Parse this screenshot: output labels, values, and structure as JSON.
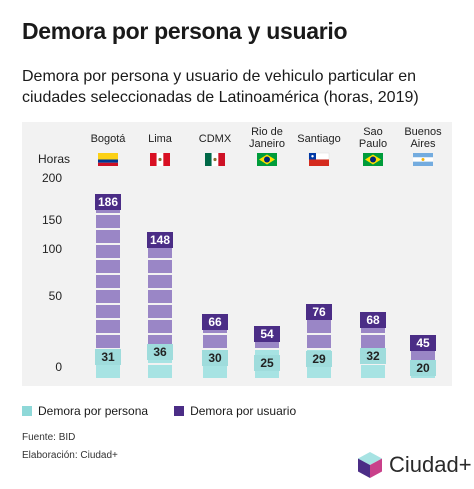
{
  "header": {
    "title": "Demora por persona y usuario"
  },
  "chart_data": {
    "type": "bar",
    "title": "Demora por persona y usuario de vehiculo particular  en ciudades seleccionadas de Latinoamérica (horas, 2019)",
    "ylabel": "Horas",
    "yticks": [
      "200",
      "150",
      "100",
      "50",
      "0"
    ],
    "categories": [
      "Bogotá",
      "Lima",
      "CDMX",
      "Rio de Janeiro",
      "Santiago",
      "Sao Paulo",
      "Buenos Aires"
    ],
    "category_lines": [
      [
        "Bogotá"
      ],
      [
        "Lima"
      ],
      [
        "CDMX"
      ],
      [
        "Rio de",
        "Janeiro"
      ],
      [
        "Santiago"
      ],
      [
        "Sao",
        "Paulo"
      ],
      [
        "Buenos",
        "Aires"
      ]
    ],
    "flags": [
      "colombia-flag-icon",
      "peru-flag-icon",
      "mexico-flag-icon",
      "brazil-flag-icon",
      "chile-flag-icon",
      "brazil-flag-icon",
      "argentina-flag-icon"
    ],
    "series": [
      {
        "name": "Demora por persona",
        "values": [
          31,
          36,
          30,
          25,
          29,
          32,
          20
        ],
        "color": "#a7e3e3",
        "label_color": "#9fdcdc"
      },
      {
        "name": "Demora por usuario",
        "values": [
          186,
          148,
          66,
          54,
          76,
          68,
          45
        ],
        "color": "#9a86c6",
        "label_color": "#4b2d86"
      }
    ]
  },
  "legend": {
    "persona": "Demora por persona",
    "usuario": "Demora por usuario"
  },
  "footer": {
    "source": "Fuente: BID",
    "credit": "Elaboración: Ciudad+",
    "brand": "Ciudad+"
  }
}
